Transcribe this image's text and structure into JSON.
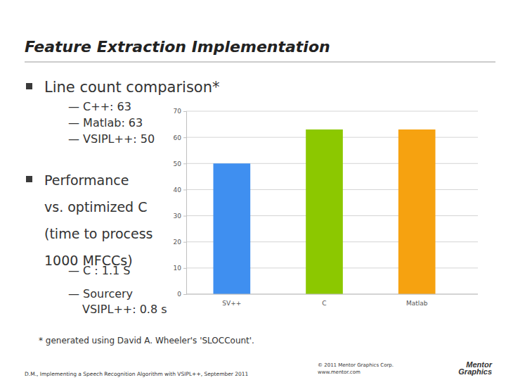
{
  "slide": {
    "title": "Feature Extraction Implementation",
    "bullets": [
      {
        "lines": [
          "Line count comparison*"
        ],
        "items": [
          [
            "— C++: 63"
          ],
          [
            "— Matlab: 63"
          ],
          [
            "— VSIPL++: 50"
          ]
        ]
      },
      {
        "lines": [
          "Performance",
          "vs. optimized C",
          "(time to process",
          "1000 MFCCs)"
        ],
        "items": [
          [
            "— C : 1.1 S"
          ],
          [
            "— Sourcery",
            "VSIPL++: 0.8 s"
          ]
        ]
      }
    ],
    "footnote": "* generated using David A. Wheeler's 'SLOCCount'.",
    "footer": "D.M., Implementing a Speech Recognition Algorithm with VSIPL++, September 2011",
    "copyright": [
      "© 2011 Mentor Graphics Corp.",
      "www.mentor.com"
    ],
    "logo": [
      "Mentor",
      "Graphics"
    ]
  },
  "chart_data": {
    "type": "bar",
    "categories": [
      "SV++",
      "C",
      "Matlab"
    ],
    "values": [
      50,
      63,
      63
    ],
    "colors": [
      "#3f8ff0",
      "#8cc800",
      "#f6a210"
    ],
    "ylim": [
      0,
      70
    ],
    "yticks": [
      0,
      10,
      20,
      30,
      40,
      50,
      60,
      70
    ],
    "grid": true
  }
}
